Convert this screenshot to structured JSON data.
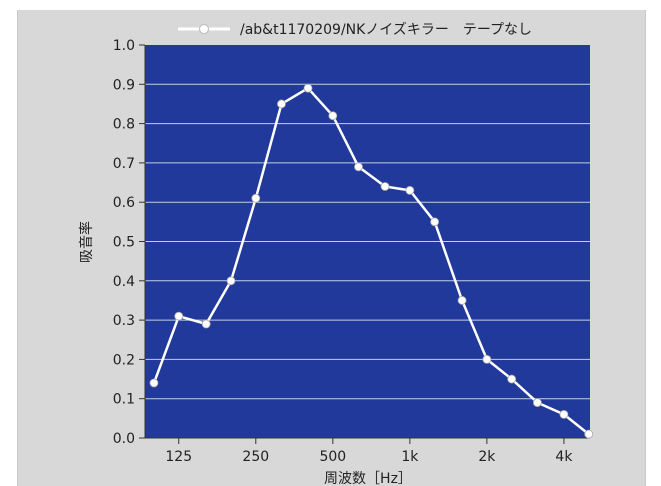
{
  "chart_data": {
    "type": "line",
    "title": "",
    "xlabel": "周波数［Hz］",
    "ylabel": "吸音率",
    "x_scale": "log",
    "x_ticks": [
      {
        "value": 125,
        "label": "125"
      },
      {
        "value": 250,
        "label": "250"
      },
      {
        "value": 500,
        "label": "500"
      },
      {
        "value": 1000,
        "label": "1k"
      },
      {
        "value": 2000,
        "label": "2k"
      },
      {
        "value": 4000,
        "label": "4k"
      }
    ],
    "ylim": [
      0.0,
      1.0
    ],
    "y_ticks": [
      "0.0",
      "0.1",
      "0.2",
      "0.3",
      "0.4",
      "0.5",
      "0.6",
      "0.7",
      "0.8",
      "0.9",
      "1.0"
    ],
    "grid": "horizontal",
    "legend_position": "top",
    "colors": {
      "plot_background": "#21399b",
      "line": "#ffffff",
      "grid": "#c8cde8"
    },
    "series": [
      {
        "name": "/ab&t1170209/NKノイズキラー　テープなし",
        "x": [
          100,
          125,
          160,
          200,
          250,
          315,
          400,
          500,
          630,
          800,
          1000,
          1250,
          1600,
          2000,
          2500,
          3150,
          4000,
          5000
        ],
        "y": [
          0.14,
          0.31,
          0.29,
          0.4,
          0.61,
          0.85,
          0.89,
          0.82,
          0.69,
          0.64,
          0.63,
          0.55,
          0.35,
          0.2,
          0.15,
          0.09,
          0.06,
          0.01
        ]
      }
    ]
  }
}
